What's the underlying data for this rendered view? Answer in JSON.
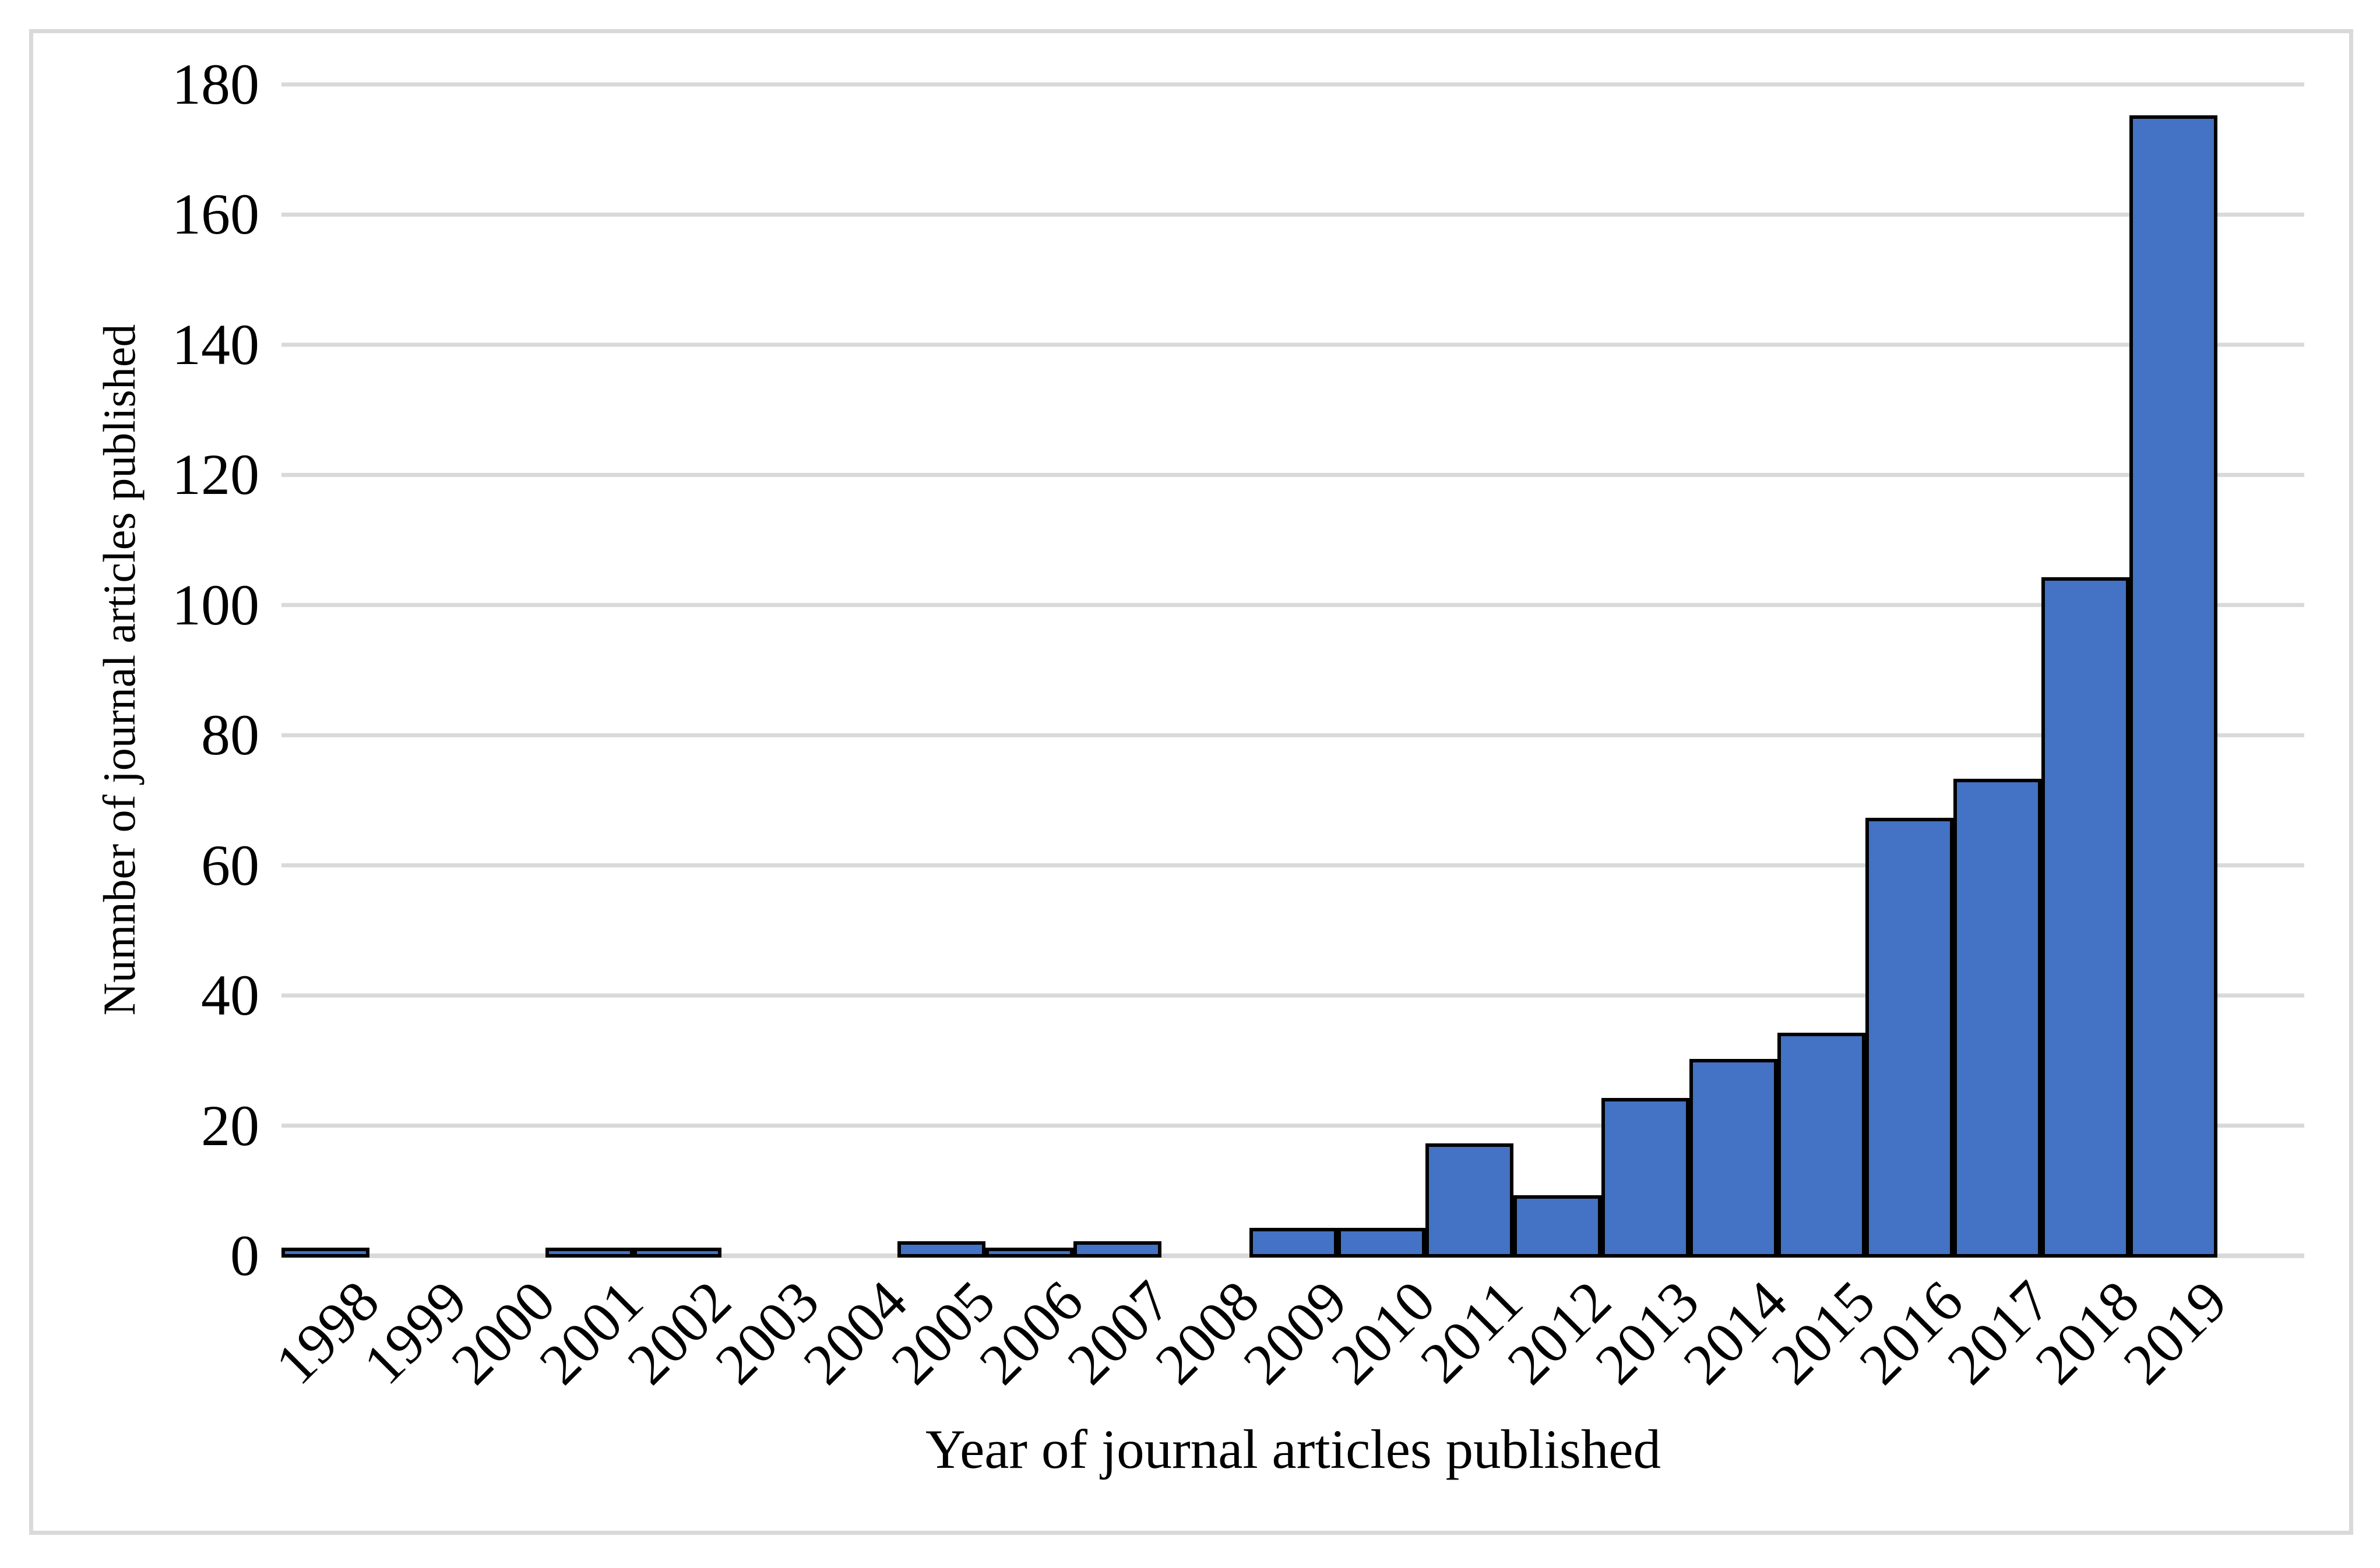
{
  "chart_data": {
    "type": "bar",
    "title": "",
    "xlabel": "Year of journal articles published",
    "ylabel": "Numnber of journal articles published",
    "categories": [
      "1998",
      "1999",
      "2000",
      "2001",
      "2002",
      "2003",
      "2004",
      "2005",
      "2006",
      "2007",
      "2008",
      "2009",
      "2010",
      "2011",
      "2012",
      "2013",
      "2014",
      "2015",
      "2016",
      "2017",
      "2018",
      "2019"
    ],
    "values": [
      1,
      0,
      0,
      1,
      1,
      0,
      0,
      2,
      1,
      2,
      0,
      4,
      4,
      17,
      9,
      24,
      30,
      34,
      67,
      73,
      104,
      175
    ],
    "ylim": [
      0,
      180
    ],
    "yticks": [
      0,
      20,
      40,
      60,
      80,
      100,
      120,
      140,
      160,
      180
    ],
    "grid": "horizontal",
    "legend": "none",
    "x_tick_rotation_deg": -45,
    "colors": {
      "bar_fill": "#4472c4",
      "bar_outline": "#000000",
      "gridline": "#d9d9d9",
      "frame": "#d9d9d9",
      "text": "#000000",
      "background": "#ffffff"
    }
  }
}
